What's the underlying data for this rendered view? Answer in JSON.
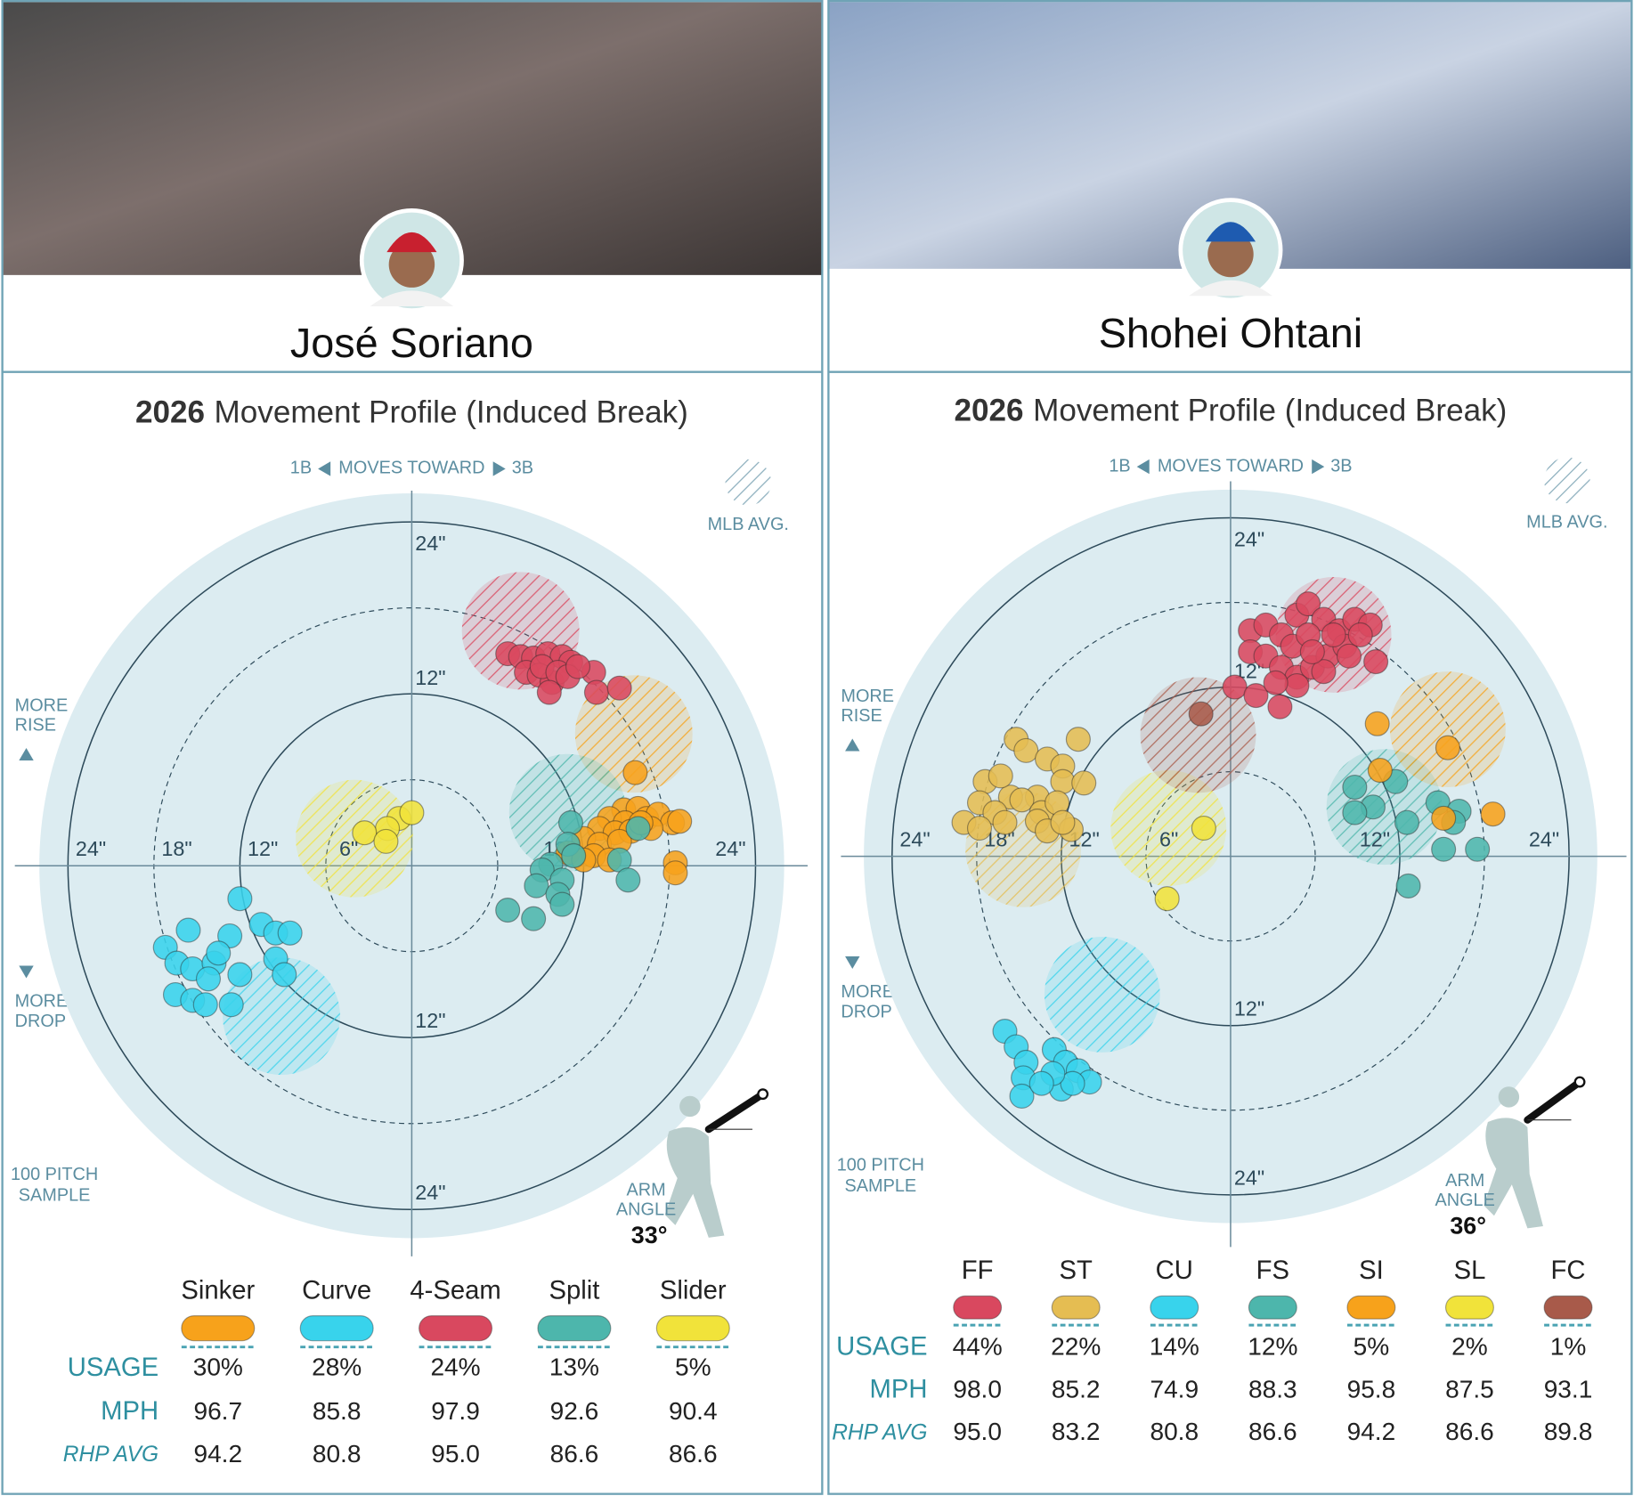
{
  "chart_data": [
    {
      "type": "movement",
      "player": "José Soriano",
      "season": "2026",
      "title": "Movement Profile (Induced Break)",
      "x_axis_labels": {
        "left": "1B",
        "center": "MOVES TOWARD",
        "right": "3B"
      },
      "y_axis_labels": {
        "top": [
          "MORE",
          "RISE"
        ],
        "bottom": [
          "MORE",
          "DROP"
        ]
      },
      "avg_label": "MLB AVG.",
      "sample_label": [
        "100 PITCH",
        "SAMPLE"
      ],
      "arm_angle_label": [
        "ARM",
        "ANGLE"
      ],
      "arm_angle": {
        "value": 33,
        "label": "33°"
      },
      "rlim": [
        0,
        26
      ],
      "rticks": [
        {
          "value": 6,
          "label": "6\""
        },
        {
          "value": 12,
          "label": "12\""
        },
        {
          "value": 18,
          "label": "18\""
        },
        {
          "value": 24,
          "label": "24\""
        }
      ],
      "row_labels": [
        "USAGE",
        "MPH",
        "RHP AVG"
      ],
      "series": [
        {
          "name": "Sinker",
          "color": "#f7a21b",
          "usage": "30%",
          "mph": "96.7",
          "rhp_avg": "94.2",
          "avg_x": 15.5,
          "avg_y": 9.2,
          "x": [
            14.8,
            15.8,
            13.8,
            14.9,
            16.4,
            17.2,
            18.2,
            18.7,
            13.1,
            14.2,
            15.3,
            16.7,
            12.0,
            13.1,
            14.5,
            12.7,
            13.8,
            10.9,
            12.0,
            18.4,
            18.4,
            16.0,
            15.6
          ],
          "y": [
            3.9,
            4.0,
            3.3,
            3.0,
            3.3,
            3.6,
            3.0,
            3.1,
            2.6,
            2.3,
            2.4,
            2.6,
            1.9,
            1.5,
            1.7,
            0.7,
            0.4,
            0.9,
            0.4,
            0.2,
            -0.5,
            3.0,
            6.5
          ]
        },
        {
          "name": "Curve",
          "color": "#38d3ec",
          "usage": "28%",
          "mph": "85.8",
          "rhp_avg": "80.8",
          "avg_x": -9.1,
          "avg_y": -10.5,
          "x": [
            -12.0,
            -15.6,
            -17.2,
            -16.4,
            -15.3,
            -13.8,
            -12.7,
            -13.5,
            -14.2,
            -12.0,
            -16.5,
            -15.3,
            -14.4,
            -12.6,
            -10.5,
            -9.5,
            -8.5,
            -9.5,
            -8.9
          ],
          "y": [
            -2.3,
            -4.5,
            -5.7,
            -6.8,
            -7.2,
            -6.8,
            -4.9,
            -6.1,
            -7.9,
            -7.6,
            -9.0,
            -9.4,
            -9.7,
            -9.7,
            -4.1,
            -4.7,
            -4.7,
            -6.5,
            -7.6
          ]
        },
        {
          "name": "4-Seam",
          "color": "#d9485f",
          "usage": "24%",
          "mph": "97.9",
          "rhp_avg": "95.0",
          "avg_x": 7.6,
          "avg_y": 16.4,
          "x": [
            6.7,
            7.6,
            8.5,
            9.5,
            10.5,
            11.1,
            8.0,
            8.9,
            9.8,
            9.1,
            10.2,
            12.7,
            12.9,
            14.5,
            9.6,
            10.9,
            11.6
          ],
          "y": [
            14.8,
            14.6,
            14.5,
            14.8,
            14.6,
            14.2,
            13.5,
            13.3,
            12.8,
            13.9,
            13.5,
            13.5,
            12.1,
            12.4,
            12.1,
            13.2,
            13.9
          ]
        },
        {
          "name": "Split",
          "color": "#4db6ac",
          "usage": "13%",
          "mph": "92.6",
          "rhp_avg": "86.6",
          "avg_x": 10.9,
          "avg_y": 3.7,
          "x": [
            11.1,
            10.9,
            9.7,
            9.1,
            8.7,
            10.5,
            10.2,
            10.5,
            6.7,
            8.5,
            11.3,
            14.5,
            15.1,
            15.8
          ],
          "y": [
            3.0,
            1.5,
            0.1,
            -0.3,
            -1.4,
            -1.0,
            -2.0,
            -2.7,
            -3.1,
            -3.7,
            0.7,
            0.4,
            -1.0,
            2.6
          ]
        },
        {
          "name": "Slider",
          "color": "#f1e33a",
          "usage": "5%",
          "mph": "90.4",
          "rhp_avg": "86.6",
          "avg_x": -4.0,
          "avg_y": 1.9,
          "x": [
            -0.9,
            0.0,
            -1.7,
            -3.3,
            -1.8
          ],
          "y": [
            3.3,
            3.7,
            2.6,
            2.3,
            1.7
          ]
        }
      ]
    },
    {
      "type": "movement",
      "player": "Shohei Ohtani",
      "season": "2026",
      "title": "Movement Profile (Induced Break)",
      "x_axis_labels": {
        "left": "1B",
        "center": "MOVES TOWARD",
        "right": "3B"
      },
      "y_axis_labels": {
        "top": [
          "MORE",
          "RISE"
        ],
        "bottom": [
          "MORE",
          "DROP"
        ]
      },
      "avg_label": "MLB AVG.",
      "sample_label": [
        "100 PITCH",
        "SAMPLE"
      ],
      "arm_angle_label": [
        "ARM",
        "ANGLE"
      ],
      "arm_angle": {
        "value": 36,
        "label": "36°"
      },
      "rlim": [
        0,
        26
      ],
      "rticks": [
        {
          "value": 6,
          "label": "6\""
        },
        {
          "value": 12,
          "label": "12\""
        },
        {
          "value": 18,
          "label": "18\""
        },
        {
          "value": 24,
          "label": "24\""
        }
      ],
      "row_labels": [
        "USAGE",
        "MPH",
        "RHP AVG"
      ],
      "series": [
        {
          "name": "FF",
          "color": "#d9485f",
          "usage": "44%",
          "mph": "98.0",
          "rhp_avg": "95.0",
          "avg_x": 7.3,
          "avg_y": 15.7,
          "x": [
            1.4,
            2.5,
            3.6,
            4.7,
            5.5,
            6.6,
            7.7,
            8.8,
            9.9,
            10.3,
            1.4,
            2.5,
            3.6,
            4.7,
            5.8,
            6.9,
            8.1,
            9.2,
            4.4,
            5.5,
            7.3,
            6.6,
            0.3,
            1.8,
            3.5,
            4.7,
            3.2,
            5.8,
            8.4
          ],
          "y": [
            16.0,
            16.4,
            15.7,
            17.1,
            17.9,
            16.8,
            16.0,
            16.8,
            16.4,
            13.8,
            14.5,
            14.2,
            13.4,
            12.7,
            13.4,
            14.2,
            14.9,
            15.7,
            14.9,
            15.7,
            15.7,
            13.1,
            12.0,
            11.4,
            10.6,
            12.1,
            12.3,
            14.5,
            14.2
          ]
        },
        {
          "name": "ST",
          "color": "#e5bd52",
          "usage": "22%",
          "mph": "85.2",
          "rhp_avg": "83.2",
          "avg_x": -14.7,
          "avg_y": 0.5,
          "x": [
            -15.2,
            -14.5,
            -13.0,
            -11.9,
            -10.8,
            -17.4,
            -15.6,
            -13.7,
            -11.9,
            -10.4,
            -17.8,
            -16.7,
            -14.8,
            -13.4,
            -12.3,
            -18.9,
            -17.8,
            -16.0,
            -13.7,
            -13.0,
            -11.3,
            -11.9,
            -16.3
          ],
          "y": [
            8.3,
            7.5,
            6.9,
            6.4,
            8.3,
            5.3,
            4.2,
            4.2,
            5.3,
            5.2,
            3.8,
            3.1,
            4.0,
            3.1,
            3.8,
            2.4,
            2.0,
            2.4,
            2.5,
            1.8,
            1.9,
            2.4,
            5.7
          ]
        },
        {
          "name": "CU",
          "color": "#38d3ec",
          "usage": "14%",
          "mph": "74.9",
          "rhp_avg": "80.8",
          "avg_x": -9.1,
          "avg_y": -9.8,
          "x": [
            -16.0,
            -15.2,
            -14.5,
            -14.7,
            -14.8,
            -12.5,
            -11.7,
            -10.8,
            -10.0,
            -12.0,
            -11.2,
            -12.6,
            -13.4
          ],
          "y": [
            -12.4,
            -13.5,
            -14.6,
            -15.7,
            -17.0,
            -13.7,
            -14.6,
            -15.2,
            -16.0,
            -16.5,
            -16.1,
            -15.4,
            -16.1
          ]
        },
        {
          "name": "FS",
          "color": "#4db6ac",
          "usage": "12%",
          "mph": "88.3",
          "rhp_avg": "86.6",
          "avg_x": 10.9,
          "avg_y": 3.5,
          "x": [
            8.8,
            10.1,
            11.7,
            8.8,
            12.5,
            14.7,
            16.2,
            15.1,
            17.5,
            12.6,
            15.8
          ],
          "y": [
            4.9,
            3.5,
            5.3,
            3.1,
            2.4,
            3.8,
            3.2,
            0.5,
            0.5,
            -2.1,
            2.4
          ]
        },
        {
          "name": "SI",
          "color": "#f7a21b",
          "usage": "5%",
          "mph": "95.8",
          "rhp_avg": "94.2",
          "avg_x": 15.4,
          "avg_y": 9.0,
          "x": [
            10.4,
            15.4,
            10.6,
            15.1,
            18.6
          ],
          "y": [
            9.4,
            7.7,
            6.1,
            2.7,
            3.0
          ]
        },
        {
          "name": "SL",
          "color": "#f1e33a",
          "usage": "2%",
          "mph": "87.5",
          "rhp_avg": "86.6",
          "avg_x": -4.4,
          "avg_y": 2.0,
          "x": [
            -1.9,
            -4.5
          ],
          "y": [
            2.0,
            -3.0
          ]
        },
        {
          "name": "FC",
          "color": "#a85a4a",
          "usage": "1%",
          "mph": "93.1",
          "rhp_avg": "89.8",
          "avg_x": -2.3,
          "avg_y": 8.6,
          "x": [
            -2.1
          ],
          "y": [
            10.1
          ]
        }
      ]
    }
  ]
}
